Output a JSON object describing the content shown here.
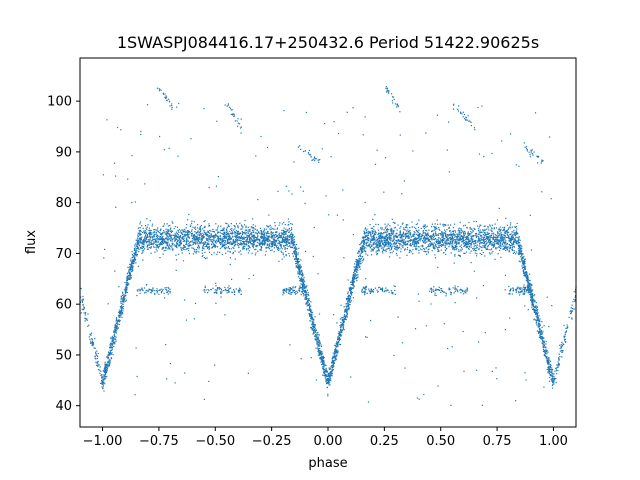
{
  "chart_data": {
    "type": "scatter",
    "title": "1SWASPJ084416.17+250432.6 Period 51422.90625s",
    "xlabel": "phase",
    "ylabel": "flux",
    "xlim": [
      -1.1,
      1.1
    ],
    "ylim": [
      35.8,
      108.5
    ],
    "grid": false,
    "point_color": "#1f77b4",
    "x_ticks": [
      -1.0,
      -0.75,
      -0.5,
      -0.25,
      0.0,
      0.25,
      0.5,
      0.75,
      1.0
    ],
    "x_tick_labels": [
      "−1.00",
      "−0.75",
      "−0.50",
      "−0.25",
      "0.00",
      "0.25",
      "0.50",
      "0.75",
      "1.00"
    ],
    "y_ticks": [
      40,
      50,
      60,
      70,
      80,
      90,
      100
    ],
    "y_tick_labels": [
      "40",
      "50",
      "60",
      "70",
      "80",
      "90",
      "100"
    ],
    "light_curve_model": {
      "baseline_flux": 72.8,
      "baseline_scatter": 1.3,
      "eclipse_centers": [
        -1.0,
        0.0,
        1.0
      ],
      "eclipse_halfwidth": 0.16,
      "eclipse_minimum_flux": 44.5,
      "shelf_flux": 62.7,
      "shelf_phase_ranges": [
        [
          -0.85,
          -0.7
        ],
        [
          -0.55,
          -0.38
        ],
        [
          -0.2,
          -0.1
        ],
        [
          0.15,
          0.3
        ],
        [
          0.45,
          0.62
        ],
        [
          0.8,
          0.9
        ]
      ],
      "high_flux_trails": [
        {
          "phase": [
            -0.75,
            -0.68
          ],
          "flux": [
            103,
            98
          ]
        },
        {
          "phase": [
            -0.45,
            -0.38
          ],
          "flux": [
            100,
            94
          ]
        },
        {
          "phase": [
            -0.13,
            -0.04
          ],
          "flux": [
            91,
            88
          ]
        },
        {
          "phase": [
            0.25,
            0.32
          ],
          "flux": [
            103,
            98
          ]
        },
        {
          "phase": [
            0.55,
            0.66
          ],
          "flux": [
            100,
            94
          ]
        },
        {
          "phase": [
            0.87,
            0.96
          ],
          "flux": [
            91,
            88
          ]
        }
      ]
    }
  }
}
